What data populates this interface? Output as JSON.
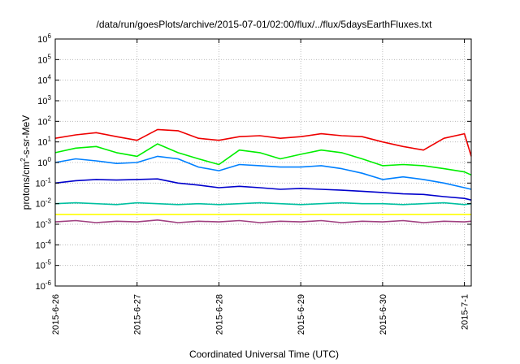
{
  "chart_data": {
    "type": "line",
    "title": "/data/run/goesPlots/archive/2015-07-01/02:00/flux/../flux/5daysEarthFluxes.txt",
    "xlabel": "Coordinated Universal Time (UTC)",
    "ylabel": "protons/cm²-s-sr-MeV",
    "ylabel_parts": {
      "base": "protons/cm",
      "sup": "2",
      "rest": "-s-sr-MeV"
    },
    "y_scale": "log",
    "ylim": [
      1e-06,
      1000000.0
    ],
    "xlim": [
      "2015-06-26 00:00",
      "2015-07-01 02:00"
    ],
    "grid": true,
    "legend": "none",
    "x_ticks": [
      {
        "label": "2015-6-26",
        "value": "2015-06-26 00:00"
      },
      {
        "label": "2015-6-27",
        "value": "2015-06-27 00:00"
      },
      {
        "label": "2015-6-28",
        "value": "2015-06-28 00:00"
      },
      {
        "label": "2015-6-29",
        "value": "2015-06-29 00:00"
      },
      {
        "label": "2015-6-30",
        "value": "2015-06-30 00:00"
      },
      {
        "label": "2015-7-1",
        "value": "2015-07-01 00:00"
      }
    ],
    "y_ticks": [
      {
        "base": "10",
        "exp": "-6"
      },
      {
        "base": "10",
        "exp": "-5"
      },
      {
        "base": "10",
        "exp": "-4"
      },
      {
        "base": "10",
        "exp": "-3"
      },
      {
        "base": "10",
        "exp": "-2"
      },
      {
        "base": "10",
        "exp": "-1"
      },
      {
        "base": "10",
        "exp": "0"
      },
      {
        "base": "10",
        "exp": "1"
      },
      {
        "base": "10",
        "exp": "2"
      },
      {
        "base": "10",
        "exp": "3"
      },
      {
        "base": "10",
        "exp": "4"
      },
      {
        "base": "10",
        "exp": "5"
      },
      {
        "base": "10",
        "exp": "6"
      }
    ],
    "series": [
      {
        "color": "#ee0000",
        "x": [
          "2015-06-26 00:00",
          "2015-06-26 06:00",
          "2015-06-26 12:00",
          "2015-06-26 18:00",
          "2015-06-27 00:00",
          "2015-06-27 06:00",
          "2015-06-27 12:00",
          "2015-06-27 18:00",
          "2015-06-28 00:00",
          "2015-06-28 06:00",
          "2015-06-28 12:00",
          "2015-06-28 18:00",
          "2015-06-29 00:00",
          "2015-06-29 06:00",
          "2015-06-29 12:00",
          "2015-06-29 18:00",
          "2015-06-30 00:00",
          "2015-06-30 06:00",
          "2015-06-30 12:00",
          "2015-06-30 18:00",
          "2015-07-01 00:00",
          "2015-07-01 02:00"
        ],
        "y": [
          15,
          22,
          28,
          18,
          12,
          40,
          35,
          15,
          12,
          18,
          20,
          15,
          18,
          25,
          20,
          18,
          10,
          6,
          4,
          15,
          25,
          2
        ]
      },
      {
        "color": "#00ee00",
        "x": [
          "2015-06-26 00:00",
          "2015-06-26 06:00",
          "2015-06-26 12:00",
          "2015-06-26 18:00",
          "2015-06-27 00:00",
          "2015-06-27 06:00",
          "2015-06-27 12:00",
          "2015-06-27 18:00",
          "2015-06-28 00:00",
          "2015-06-28 06:00",
          "2015-06-28 12:00",
          "2015-06-28 18:00",
          "2015-06-29 00:00",
          "2015-06-29 06:00",
          "2015-06-29 12:00",
          "2015-06-29 18:00",
          "2015-06-30 00:00",
          "2015-06-30 06:00",
          "2015-06-30 12:00",
          "2015-06-30 18:00",
          "2015-07-01 00:00",
          "2015-07-01 02:00"
        ],
        "y": [
          3,
          5,
          6,
          3,
          2,
          8,
          3,
          1.5,
          0.8,
          4,
          3,
          1.5,
          2.5,
          4,
          3,
          1.5,
          0.7,
          0.8,
          0.7,
          0.5,
          0.35,
          0.25
        ]
      },
      {
        "color": "#0080ff",
        "x": [
          "2015-06-26 00:00",
          "2015-06-26 06:00",
          "2015-06-26 12:00",
          "2015-06-26 18:00",
          "2015-06-27 00:00",
          "2015-06-27 06:00",
          "2015-06-27 12:00",
          "2015-06-27 18:00",
          "2015-06-28 00:00",
          "2015-06-28 06:00",
          "2015-06-28 12:00",
          "2015-06-28 18:00",
          "2015-06-29 00:00",
          "2015-06-29 06:00",
          "2015-06-29 12:00",
          "2015-06-29 18:00",
          "2015-06-30 00:00",
          "2015-06-30 06:00",
          "2015-06-30 12:00",
          "2015-06-30 18:00",
          "2015-07-01 00:00",
          "2015-07-01 02:00"
        ],
        "y": [
          1.0,
          1.5,
          1.2,
          0.9,
          1.0,
          2.0,
          1.5,
          0.6,
          0.4,
          0.8,
          0.7,
          0.6,
          0.6,
          0.7,
          0.5,
          0.3,
          0.15,
          0.2,
          0.15,
          0.1,
          0.06,
          0.05
        ]
      },
      {
        "color": "#0000cc",
        "x": [
          "2015-06-26 00:00",
          "2015-06-26 06:00",
          "2015-06-26 12:00",
          "2015-06-26 18:00",
          "2015-06-27 00:00",
          "2015-06-27 06:00",
          "2015-06-27 12:00",
          "2015-06-27 18:00",
          "2015-06-28 00:00",
          "2015-06-28 06:00",
          "2015-06-28 12:00",
          "2015-06-28 18:00",
          "2015-06-29 00:00",
          "2015-06-29 06:00",
          "2015-06-29 12:00",
          "2015-06-29 18:00",
          "2015-06-30 00:00",
          "2015-06-30 06:00",
          "2015-06-30 12:00",
          "2015-06-30 18:00",
          "2015-07-01 00:00",
          "2015-07-01 02:00"
        ],
        "y": [
          0.1,
          0.13,
          0.15,
          0.14,
          0.15,
          0.16,
          0.1,
          0.08,
          0.06,
          0.07,
          0.06,
          0.05,
          0.055,
          0.05,
          0.045,
          0.04,
          0.035,
          0.03,
          0.028,
          0.022,
          0.018,
          0.015
        ]
      },
      {
        "color": "#00c0a0",
        "x": [
          "2015-06-26 00:00",
          "2015-06-26 06:00",
          "2015-06-26 12:00",
          "2015-06-26 18:00",
          "2015-06-27 00:00",
          "2015-06-27 06:00",
          "2015-06-27 12:00",
          "2015-06-27 18:00",
          "2015-06-28 00:00",
          "2015-06-28 06:00",
          "2015-06-28 12:00",
          "2015-06-28 18:00",
          "2015-06-29 00:00",
          "2015-06-29 06:00",
          "2015-06-29 12:00",
          "2015-06-29 18:00",
          "2015-06-30 00:00",
          "2015-06-30 06:00",
          "2015-06-30 12:00",
          "2015-06-30 18:00",
          "2015-07-01 00:00",
          "2015-07-01 02:00"
        ],
        "y": [
          0.01,
          0.011,
          0.01,
          0.009,
          0.011,
          0.01,
          0.009,
          0.01,
          0.009,
          0.01,
          0.011,
          0.01,
          0.009,
          0.01,
          0.011,
          0.01,
          0.01,
          0.009,
          0.01,
          0.011,
          0.009,
          0.01
        ]
      },
      {
        "color": "#ffff00",
        "x": [
          "2015-06-26 00:00",
          "2015-06-26 12:00",
          "2015-06-27 00:00",
          "2015-06-27 12:00",
          "2015-06-28 00:00",
          "2015-06-28 12:00",
          "2015-06-29 00:00",
          "2015-06-29 12:00",
          "2015-06-30 00:00",
          "2015-06-30 12:00",
          "2015-07-01 00:00",
          "2015-07-01 02:00"
        ],
        "y": [
          0.003,
          0.003,
          0.003,
          0.003,
          0.003,
          0.003,
          0.003,
          0.003,
          0.003,
          0.003,
          0.003,
          0.003
        ]
      },
      {
        "color": "#a04080",
        "x": [
          "2015-06-26 00:00",
          "2015-06-26 06:00",
          "2015-06-26 12:00",
          "2015-06-26 18:00",
          "2015-06-27 00:00",
          "2015-06-27 06:00",
          "2015-06-27 12:00",
          "2015-06-27 18:00",
          "2015-06-28 00:00",
          "2015-06-28 06:00",
          "2015-06-28 12:00",
          "2015-06-28 18:00",
          "2015-06-29 00:00",
          "2015-06-29 06:00",
          "2015-06-29 12:00",
          "2015-06-29 18:00",
          "2015-06-30 00:00",
          "2015-06-30 06:00",
          "2015-06-30 12:00",
          "2015-06-30 18:00",
          "2015-07-01 00:00",
          "2015-07-01 02:00"
        ],
        "y": [
          0.0013,
          0.0015,
          0.0012,
          0.0014,
          0.0013,
          0.0016,
          0.0012,
          0.0014,
          0.0013,
          0.0015,
          0.0012,
          0.0014,
          0.0013,
          0.0015,
          0.0012,
          0.0014,
          0.0013,
          0.0015,
          0.0012,
          0.0014,
          0.0013,
          0.0014
        ]
      }
    ]
  }
}
